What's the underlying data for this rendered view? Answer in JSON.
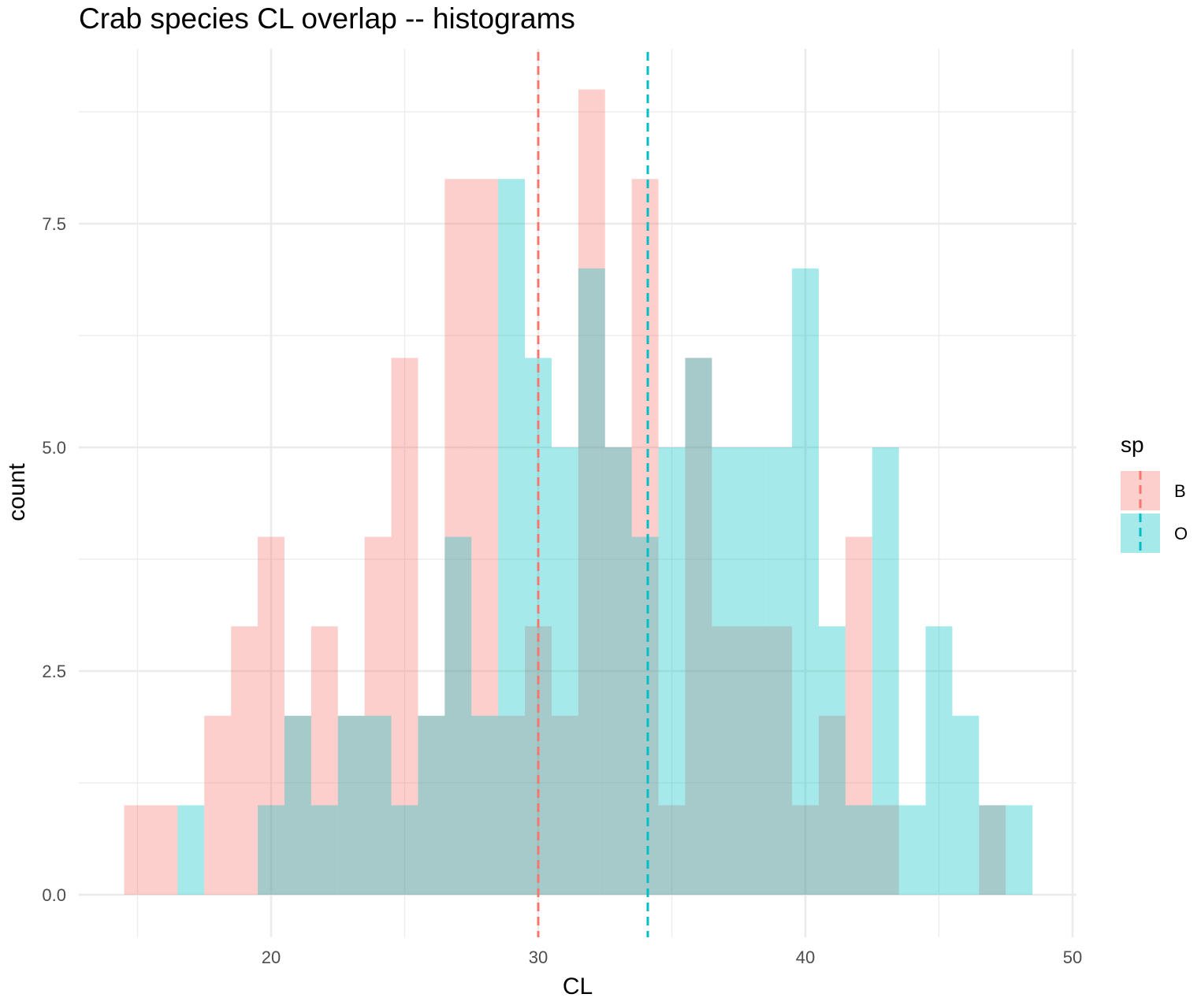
{
  "chart_data": {
    "type": "histogram",
    "title": "Crab species CL overlap -- histograms",
    "xlabel": "CL",
    "ylabel": "count",
    "xlim": [
      13,
      50.5
    ],
    "ylim": [
      -0.8,
      9.6
    ],
    "x_ticks": [
      20,
      30,
      40,
      50
    ],
    "x_tick_labels": [
      "20",
      "30",
      "40",
      "50"
    ],
    "y_ticks": [
      0,
      2.5,
      5,
      7.5
    ],
    "y_tick_labels": [
      "0.0",
      "2.5",
      "5.0",
      "7.5"
    ],
    "grid": true,
    "bin_width": 1,
    "legend": {
      "title": "sp",
      "position": "right"
    },
    "series": [
      {
        "name": "B",
        "color": "#F8766D",
        "mean": 30.0,
        "bins": [
          {
            "x0": 14.5,
            "x1": 15.5,
            "count": 1
          },
          {
            "x0": 15.5,
            "x1": 16.5,
            "count": 1
          },
          {
            "x0": 17.5,
            "x1": 18.5,
            "count": 2
          },
          {
            "x0": 18.5,
            "x1": 19.5,
            "count": 3
          },
          {
            "x0": 19.5,
            "x1": 20.5,
            "count": 4
          },
          {
            "x0": 20.5,
            "x1": 21.5,
            "count": 2
          },
          {
            "x0": 21.5,
            "x1": 22.5,
            "count": 3
          },
          {
            "x0": 22.5,
            "x1": 23.5,
            "count": 2
          },
          {
            "x0": 23.5,
            "x1": 24.5,
            "count": 4
          },
          {
            "x0": 24.5,
            "x1": 25.5,
            "count": 6
          },
          {
            "x0": 25.5,
            "x1": 26.5,
            "count": 2
          },
          {
            "x0": 26.5,
            "x1": 27.5,
            "count": 8
          },
          {
            "x0": 27.5,
            "x1": 28.5,
            "count": 8
          },
          {
            "x0": 28.5,
            "x1": 29.5,
            "count": 2
          },
          {
            "x0": 29.5,
            "x1": 30.5,
            "count": 3
          },
          {
            "x0": 30.5,
            "x1": 31.5,
            "count": 2
          },
          {
            "x0": 31.5,
            "x1": 32.5,
            "count": 9
          },
          {
            "x0": 32.5,
            "x1": 33.5,
            "count": 5
          },
          {
            "x0": 33.5,
            "x1": 34.5,
            "count": 8
          },
          {
            "x0": 34.5,
            "x1": 35.5,
            "count": 1
          },
          {
            "x0": 35.5,
            "x1": 36.5,
            "count": 6
          },
          {
            "x0": 36.5,
            "x1": 37.5,
            "count": 3
          },
          {
            "x0": 37.5,
            "x1": 38.5,
            "count": 3
          },
          {
            "x0": 38.5,
            "x1": 39.5,
            "count": 3
          },
          {
            "x0": 39.5,
            "x1": 40.5,
            "count": 1
          },
          {
            "x0": 40.5,
            "x1": 41.5,
            "count": 2
          },
          {
            "x0": 41.5,
            "x1": 42.5,
            "count": 4
          },
          {
            "x0": 42.5,
            "x1": 43.5,
            "count": 1
          },
          {
            "x0": 46.5,
            "x1": 47.5,
            "count": 1
          }
        ]
      },
      {
        "name": "O",
        "color": "#00BFC4",
        "mean": 34.1,
        "bins": [
          {
            "x0": 16.5,
            "x1": 17.5,
            "count": 1
          },
          {
            "x0": 19.5,
            "x1": 20.5,
            "count": 1
          },
          {
            "x0": 20.5,
            "x1": 21.5,
            "count": 2
          },
          {
            "x0": 21.5,
            "x1": 22.5,
            "count": 1
          },
          {
            "x0": 22.5,
            "x1": 23.5,
            "count": 2
          },
          {
            "x0": 23.5,
            "x1": 24.5,
            "count": 2
          },
          {
            "x0": 24.5,
            "x1": 25.5,
            "count": 1
          },
          {
            "x0": 25.5,
            "x1": 26.5,
            "count": 2
          },
          {
            "x0": 26.5,
            "x1": 27.5,
            "count": 4
          },
          {
            "x0": 27.5,
            "x1": 28.5,
            "count": 2
          },
          {
            "x0": 28.5,
            "x1": 29.5,
            "count": 8
          },
          {
            "x0": 29.5,
            "x1": 30.5,
            "count": 6
          },
          {
            "x0": 30.5,
            "x1": 31.5,
            "count": 5
          },
          {
            "x0": 31.5,
            "x1": 32.5,
            "count": 7
          },
          {
            "x0": 32.5,
            "x1": 33.5,
            "count": 5
          },
          {
            "x0": 33.5,
            "x1": 34.5,
            "count": 4
          },
          {
            "x0": 34.5,
            "x1": 35.5,
            "count": 5
          },
          {
            "x0": 35.5,
            "x1": 36.5,
            "count": 6
          },
          {
            "x0": 36.5,
            "x1": 37.5,
            "count": 5
          },
          {
            "x0": 37.5,
            "x1": 38.5,
            "count": 5
          },
          {
            "x0": 38.5,
            "x1": 39.5,
            "count": 5
          },
          {
            "x0": 39.5,
            "x1": 40.5,
            "count": 7
          },
          {
            "x0": 40.5,
            "x1": 41.5,
            "count": 3
          },
          {
            "x0": 41.5,
            "x1": 42.5,
            "count": 1
          },
          {
            "x0": 42.5,
            "x1": 43.5,
            "count": 5
          },
          {
            "x0": 43.5,
            "x1": 44.5,
            "count": 1
          },
          {
            "x0": 44.5,
            "x1": 45.5,
            "count": 3
          },
          {
            "x0": 45.5,
            "x1": 46.5,
            "count": 2
          },
          {
            "x0": 46.5,
            "x1": 47.5,
            "count": 1
          },
          {
            "x0": 47.5,
            "x1": 48.5,
            "count": 1
          }
        ]
      }
    ]
  }
}
